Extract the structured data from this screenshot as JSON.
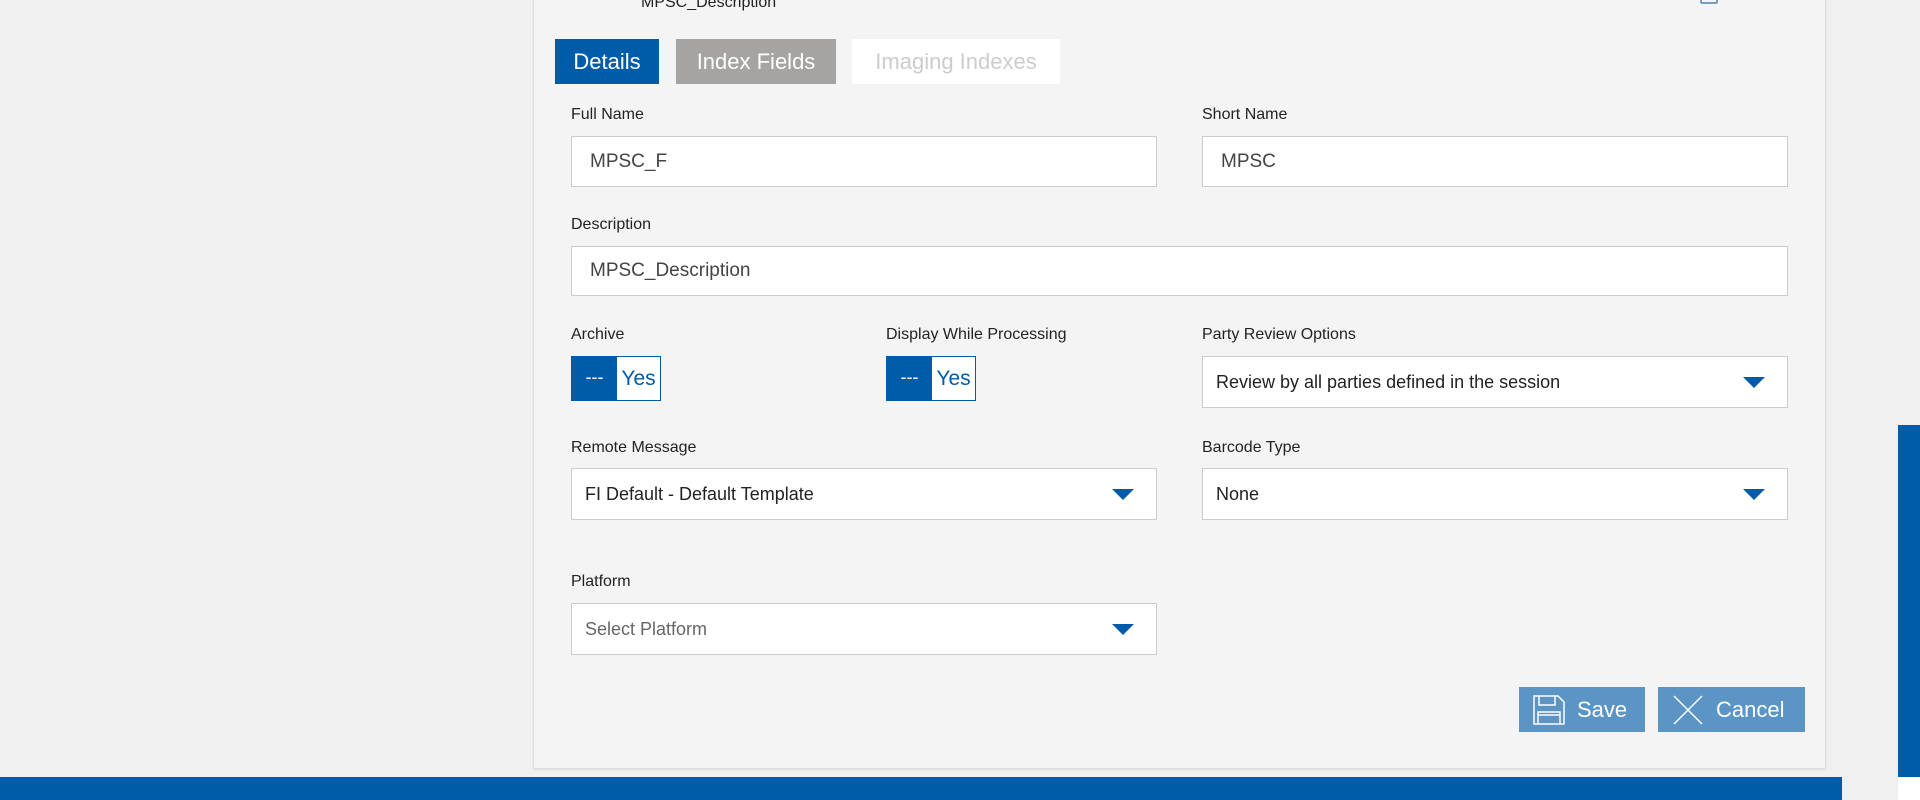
{
  "header": {
    "description_text": "MPSC_Description"
  },
  "tabs": [
    {
      "label": "Details",
      "state": "active"
    },
    {
      "label": "Index Fields",
      "state": "inactive"
    },
    {
      "label": "Imaging Indexes",
      "state": "disabled"
    }
  ],
  "form": {
    "full_name": {
      "label": "Full Name",
      "value": "MPSC_F"
    },
    "short_name": {
      "label": "Short Name",
      "value": "MPSC"
    },
    "description": {
      "label": "Description",
      "value": "MPSC_Description"
    },
    "archive": {
      "label": "Archive",
      "on_label": "---",
      "off_label": "Yes"
    },
    "display_while_processing": {
      "label": "Display While Processing",
      "on_label": "---",
      "off_label": "Yes"
    },
    "party_review": {
      "label": "Party Review Options",
      "value": "Review by all parties defined in the session"
    },
    "remote_message": {
      "label": "Remote Message",
      "value": "FI Default - Default Template"
    },
    "barcode_type": {
      "label": "Barcode Type",
      "value": "None"
    },
    "platform": {
      "label": "Platform",
      "placeholder": "Select Platform"
    }
  },
  "actions": {
    "save": "Save",
    "cancel": "Cancel"
  },
  "colors": {
    "primary": "#005ca8",
    "button": "#5a95c6",
    "tab_inactive": "#a5a4a2"
  }
}
